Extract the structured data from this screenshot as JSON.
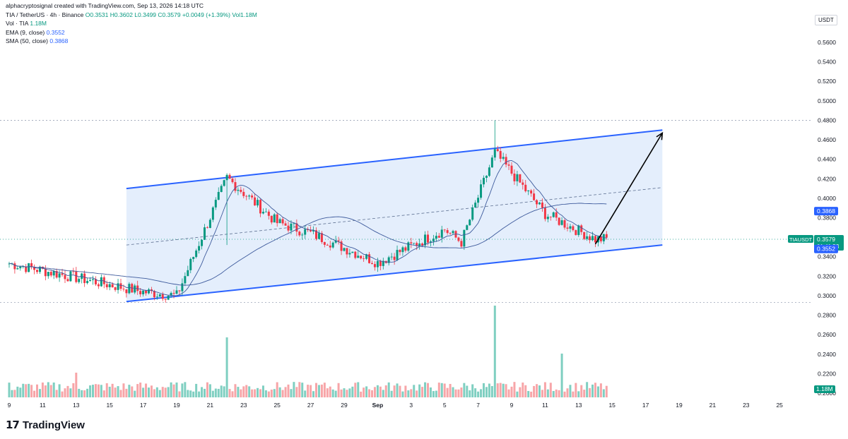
{
  "header": {
    "author_line": "alphacryptosignal created with TradingView.com, Sep 13, 2026 14:18 UTC",
    "symbol_line": "TIA / TetherUS · 4h · Binance",
    "open": "O0.3531",
    "high": "H0.3602",
    "low": "L0.3499",
    "close": "C0.3579",
    "change": "+0.0049 (+1.39%)",
    "vol_inline": "Vol1.18M",
    "vol_label": "Vol · TIA",
    "vol_value": "1.18M",
    "ema_label": "EMA (9, close)",
    "ema_value": "0.3552",
    "sma_label": "SMA (50, close)",
    "sma_value": "0.3868"
  },
  "currency_badge": "USDT",
  "brand": "TradingView",
  "colors": {
    "up": "#089981",
    "down": "#f23645",
    "up_vol": "#7fcfc1",
    "down_vol": "#f7a5a8",
    "channel": "#2962ff",
    "channel_fill": "#dbe8fb",
    "ma": "#3d5a9c"
  },
  "chart_data": {
    "type": "candlestick",
    "title": "TIA / TetherUS · 4h · Binance",
    "y_ticks": [
      "0.5600",
      "0.5400",
      "0.5200",
      "0.5000",
      "0.4800",
      "0.4600",
      "0.4400",
      "0.4200",
      "0.4000",
      "0.3800",
      "0.3600",
      "0.3400",
      "0.3200",
      "0.3000",
      "0.2800",
      "0.2600",
      "0.2400",
      "0.2200",
      "0.2000"
    ],
    "x_ticks": [
      "9",
      "11",
      "13",
      "15",
      "17",
      "19",
      "21",
      "23",
      "25",
      "27",
      "29",
      "Sep",
      "3",
      "5",
      "7",
      "9",
      "11",
      "13",
      "15",
      "17",
      "19",
      "21",
      "23",
      "25"
    ],
    "ylim": [
      0.2,
      0.57
    ],
    "price_labels": [
      {
        "name": "SMA (50)",
        "value": "0.3868",
        "color": "#2962ff"
      },
      {
        "name": "TIAUSDT",
        "value": "0.3579",
        "sub": "01:41:53",
        "color": "#089981"
      },
      {
        "name": "EMA (9)",
        "value": "0.3552",
        "color": "#2962ff"
      }
    ],
    "volume_label": "1.18M",
    "key_points": [
      {
        "time": "Aug 9",
        "price": 0.333
      },
      {
        "time": "Aug 17",
        "price": 0.304
      },
      {
        "time": "Aug 19",
        "price": 0.3
      },
      {
        "time": "Aug 22",
        "price": 0.421
      },
      {
        "time": "Aug 25",
        "price": 0.375
      },
      {
        "time": "Aug 27",
        "price": 0.364
      },
      {
        "time": "Aug 31",
        "price": 0.334
      },
      {
        "time": "Sep 4",
        "price": 0.368
      },
      {
        "time": "Sep 5",
        "price": 0.355
      },
      {
        "time": "Sep 7",
        "price": 0.447
      },
      {
        "time": "Sep 7 high",
        "price": 0.48
      },
      {
        "time": "Sep 10",
        "price": 0.384
      },
      {
        "time": "Sep 13",
        "price": 0.3579
      }
    ],
    "channel": {
      "upper": [
        {
          "time": "Aug 16",
          "price": 0.41
        },
        {
          "time": "Sep 17",
          "price": 0.47
        }
      ],
      "lower": [
        {
          "time": "Aug 16",
          "price": 0.294
        },
        {
          "time": "Sep 17",
          "price": 0.352
        }
      ]
    },
    "projection": {
      "from": {
        "time": "Sep 13",
        "price": 0.353
      },
      "to": {
        "time": "Sep 17",
        "price": 0.467
      }
    },
    "grid": false,
    "legend_position": "top-left"
  }
}
